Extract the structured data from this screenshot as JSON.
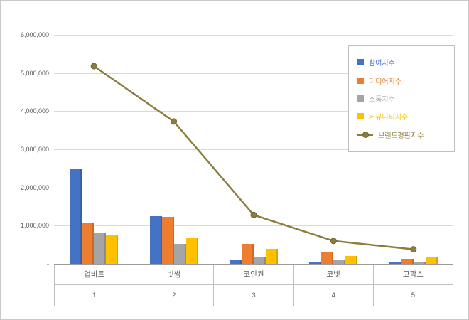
{
  "chart": {
    "frame_border_color": "#c9c9c9",
    "axis_color": "#9b9b9b",
    "grid_color": "#d9d9d9",
    "table_border_color": "#bfbfbf",
    "text_color": "#595959",
    "background": "#ffffff"
  },
  "chart_data": {
    "type": "bar",
    "combo": "clustered-column-with-line",
    "title": "",
    "xlabel": "",
    "ylabel": "",
    "categories": [
      "업비트",
      "빗썸",
      "코인원",
      "코빗",
      "고팍스"
    ],
    "category_ranks": [
      "1",
      "2",
      "3",
      "4",
      "5"
    ],
    "series": [
      {
        "name": "참여지수",
        "type": "bar",
        "color": "#4472c4",
        "values": [
          2470000,
          1240000,
          120000,
          45000,
          45000
        ]
      },
      {
        "name": "미디어지수",
        "type": "bar",
        "color": "#ed7d31",
        "values": [
          1080000,
          1230000,
          530000,
          320000,
          130000
        ]
      },
      {
        "name": "소통지수",
        "type": "bar",
        "color": "#a5a5a5",
        "values": [
          820000,
          520000,
          170000,
          95000,
          40000
        ]
      },
      {
        "name": "커뮤니티지수",
        "type": "bar",
        "color": "#ffc000",
        "values": [
          745000,
          690000,
          400000,
          200000,
          170000
        ]
      },
      {
        "name": "브랜드평판지수",
        "type": "line",
        "color": "#8b7d3b",
        "marker_stroke": "#6f6430",
        "values": [
          5180000,
          3730000,
          1280000,
          600000,
          380000
        ]
      }
    ],
    "ylim": [
      0,
      6000000
    ],
    "ytick_interval": 1000000,
    "ytick_labels": [
      "-",
      "1,000,000",
      "2,000,000",
      "3,000,000",
      "4,000,000",
      "5,000,000",
      "6,000,000"
    ],
    "grid": true,
    "legend_position": "top-right"
  }
}
